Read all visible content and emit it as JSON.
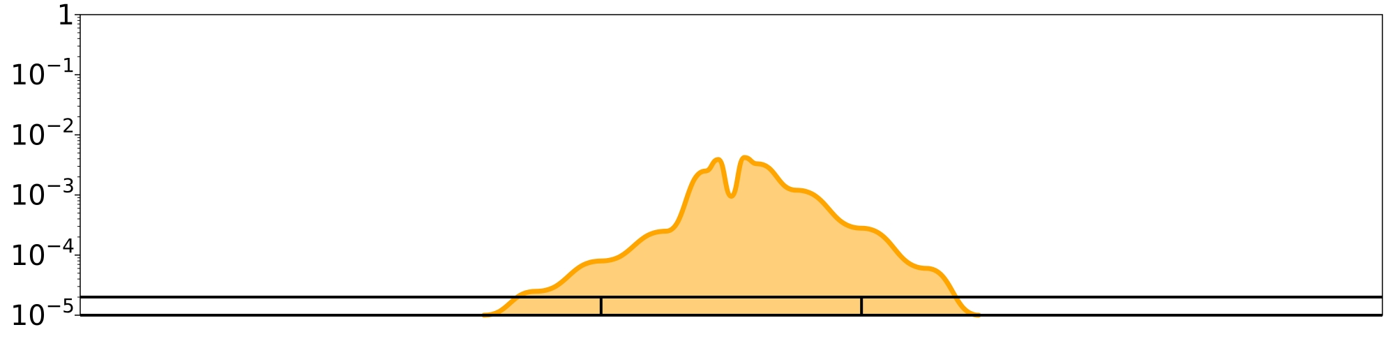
{
  "chart_data": {
    "type": "area",
    "title": "",
    "xlabel": "",
    "ylabel": "",
    "y_scale": "log",
    "ylim": [
      1e-05,
      1
    ],
    "xlim": [
      0,
      1
    ],
    "grid": false,
    "y_ticks": [
      {
        "value": 1,
        "base": "1",
        "exp": ""
      },
      {
        "value": 0.1,
        "base": "10",
        "exp": "−1"
      },
      {
        "value": 0.01,
        "base": "10",
        "exp": "−2"
      },
      {
        "value": 0.001,
        "base": "10",
        "exp": "−3"
      },
      {
        "value": 0.0001,
        "base": "10",
        "exp": "−4"
      },
      {
        "value": 1e-05,
        "base": "10",
        "exp": "−5"
      }
    ],
    "series": [
      {
        "color": "#FFA500",
        "fill_color": "#FFCF7A",
        "x": [
          0.31,
          0.35,
          0.4,
          0.45,
          0.5,
          0.48,
          0.49,
          0.51,
          0.52,
          0.55,
          0.6,
          0.65,
          0.69
        ],
        "y": [
          1e-05,
          2.5e-05,
          8e-05,
          0.00025,
          0.00095,
          0.0025,
          0.0039,
          0.0042,
          0.0033,
          0.0012,
          0.00028,
          6e-05,
          1e-05
        ]
      }
    ],
    "reference_band": {
      "y_top": 2e-05,
      "y_bottom": 1e-05,
      "divider_x": [
        0.4,
        0.6
      ]
    }
  }
}
